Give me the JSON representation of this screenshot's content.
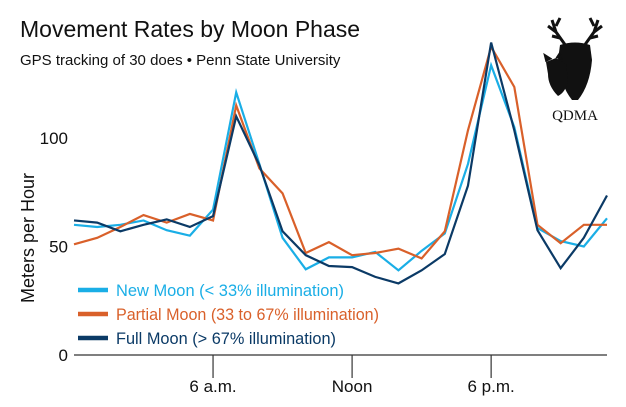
{
  "chart_data": {
    "type": "line",
    "title": "Movement Rates by Moon Phase",
    "subtitle": "GPS tracking of 30 does • Penn State University",
    "ylabel": "Meters per Hour",
    "xlabel": "",
    "x": [
      0,
      1,
      2,
      3,
      4,
      5,
      6,
      7,
      8,
      9,
      10,
      11,
      12,
      13,
      14,
      15,
      16,
      17,
      18,
      19,
      20,
      21,
      22,
      23
    ],
    "x_ticks": [
      {
        "value": 6,
        "label": "6 a.m."
      },
      {
        "value": 12,
        "label": "Noon"
      },
      {
        "value": 18,
        "label": "6 p.m."
      }
    ],
    "y_ticks": [
      {
        "value": 0,
        "label": "0"
      },
      {
        "value": 50,
        "label": "50"
      },
      {
        "value": 100,
        "label": "100"
      }
    ],
    "ylim": [
      0,
      150
    ],
    "xlim": [
      0,
      23
    ],
    "grid": false,
    "legend_position": "bottom-left",
    "series": [
      {
        "name": "New Moon (< 33% illumination)",
        "color": "#1aaee6",
        "values": [
          60,
          59,
          60,
          62,
          57.5,
          55,
          67,
          121,
          88,
          54,
          39.5,
          45,
          45,
          47.5,
          39,
          48,
          56,
          88,
          133.5,
          105,
          58.5,
          52.5,
          50,
          63
        ]
      },
      {
        "name": "Partial Moon (33 to 67% illumination)",
        "color": "#d9602a",
        "values": [
          51,
          54,
          59,
          64.5,
          61,
          65,
          62,
          115,
          86,
          74.5,
          47,
          52,
          46,
          47,
          49,
          44.5,
          57,
          103.5,
          142,
          123.5,
          60,
          51.5,
          60,
          60
        ]
      },
      {
        "name": "Full Moon (> 67% illumination)",
        "color": "#0b3a66",
        "values": [
          62,
          61,
          57,
          60,
          62.5,
          59,
          64,
          110,
          87.5,
          57,
          46,
          41,
          40.5,
          36,
          33,
          39,
          46.5,
          78,
          144,
          103.5,
          57.5,
          40,
          54,
          73.5
        ]
      }
    ]
  },
  "logo": {
    "text": "QDMA",
    "icon": "deer-icon"
  }
}
